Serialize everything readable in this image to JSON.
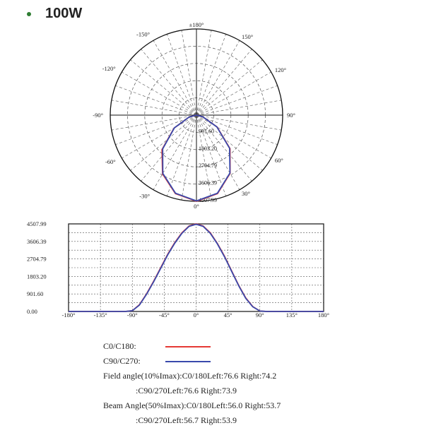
{
  "header": {
    "title": "100W"
  },
  "colors": {
    "c0": "#e53935",
    "c90": "#3949ab",
    "grid": "#555555",
    "frame": "#222222"
  },
  "polar_labels": {
    "top": "±180°",
    "bottom": "0°",
    "left": [
      "-150°",
      "-120°",
      "-90°",
      "-60°",
      "-30°"
    ],
    "right": [
      "150°",
      "120°",
      "90°",
      "60°",
      "30°"
    ],
    "radial": [
      "901.60",
      "1803.20",
      "2704.79",
      "3606.39",
      "4507.99"
    ]
  },
  "legend": {
    "c0_label": "C0/C180:",
    "c90_label": "C90/C270:",
    "field1": "Field angle(10%Imax):C0/180Left:76.6 Right:74.2",
    "field2": ":C90/270Left:76.6 Right:73.9",
    "beam1": "Beam Angle(50%Imax):C0/180Left:56.0 Right:53.7",
    "beam2": ":C90/270Left:56.7 Right:53.9"
  },
  "chart_data": [
    {
      "type": "line",
      "polar": true,
      "rlim": [
        0,
        4507.99
      ],
      "series": [
        {
          "name": "C0/C180",
          "theta": [
            -90,
            -75,
            -60,
            -45,
            -30,
            -15,
            0,
            15,
            30,
            45,
            60,
            75,
            90
          ],
          "values": [
            0,
            400,
            1350,
            2550,
            3550,
            4250,
            4507.99,
            4250,
            3520,
            2480,
            1250,
            350,
            0
          ]
        },
        {
          "name": "C90/C270",
          "theta": [
            -90,
            -75,
            -60,
            -45,
            -30,
            -15,
            0,
            15,
            30,
            45,
            60,
            75,
            90
          ],
          "values": [
            0,
            400,
            1330,
            2500,
            3520,
            4230,
            4490,
            4230,
            3500,
            2450,
            1230,
            340,
            0
          ]
        }
      ]
    },
    {
      "type": "line",
      "x": [
        -180,
        -135,
        -100,
        -90,
        -80,
        -70,
        -60,
        -50,
        -40,
        -30,
        -20,
        -10,
        0,
        10,
        20,
        30,
        40,
        50,
        60,
        70,
        80,
        90,
        100,
        135,
        180
      ],
      "xticks": [
        "-180°",
        "-135°",
        "-90°",
        "-45°",
        "0°",
        "45°",
        "90°",
        "135°",
        "180°"
      ],
      "yticks": [
        "0.00",
        "901.60",
        "1803.20",
        "2704.79",
        "3606.39",
        "4507.99"
      ],
      "xlim": [
        -180,
        180
      ],
      "ylim": [
        0,
        4507.99
      ],
      "grid": true,
      "series": [
        {
          "name": "C0/C180",
          "values": [
            0,
            0,
            0,
            40,
            350,
            900,
            1550,
            2250,
            2950,
            3550,
            4050,
            4400,
            4507.99,
            4400,
            4050,
            3500,
            2850,
            2100,
            1350,
            700,
            250,
            20,
            0,
            0,
            0
          ]
        },
        {
          "name": "C90/C270",
          "values": [
            0,
            0,
            0,
            40,
            330,
            880,
            1520,
            2220,
            2920,
            3520,
            4020,
            4380,
            4490,
            4380,
            4020,
            3480,
            2820,
            2080,
            1330,
            680,
            240,
            20,
            0,
            0,
            0
          ]
        }
      ]
    }
  ]
}
